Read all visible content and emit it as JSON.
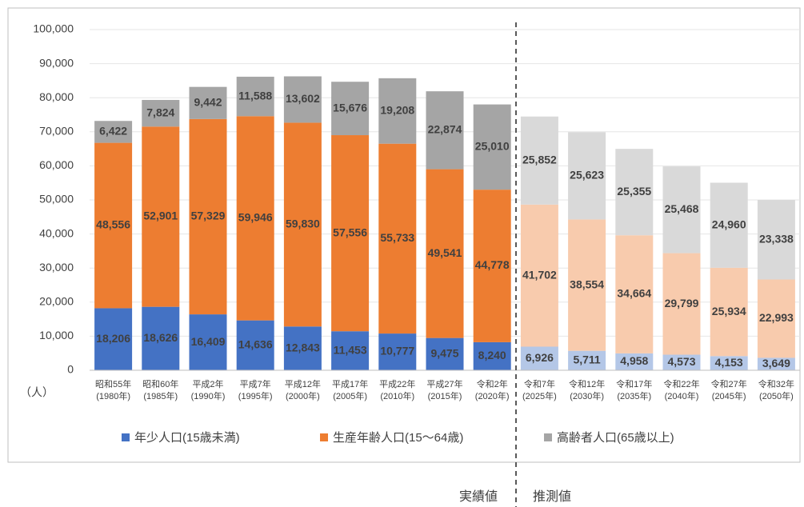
{
  "chart_data": {
    "type": "stacked_bar",
    "y_axis_label": "（人）",
    "categories": [
      "昭和55年\n(1980年)",
      "昭和60年\n(1985年)",
      "平成2年\n(1990年)",
      "平成7年\n(1995年)",
      "平成12年\n(2000年)",
      "平成17年\n(2005年)",
      "平成22年\n(2010年)",
      "平成27年\n(2015年)",
      "令和2年\n(2020年)",
      "令和7年\n(2025年)",
      "令和12年\n(2030年)",
      "令和17年\n(2035年)",
      "令和22年\n(2040年)",
      "令和27年\n(2045年)",
      "令和32年\n(2050年)"
    ],
    "series": [
      {
        "name": "年少人口(15歳未満)",
        "color": "#4472c4",
        "colors": [
          "#4472c4",
          "#4472c4",
          "#4472c4",
          "#4472c4",
          "#4472c4",
          "#4472c4",
          "#4472c4",
          "#4472c4",
          "#4472c4",
          "#b4c7e7",
          "#b4c7e7",
          "#b4c7e7",
          "#b4c7e7",
          "#b4c7e7",
          "#b4c7e7"
        ],
        "values": [
          18206,
          18626,
          16409,
          14636,
          12843,
          11453,
          10777,
          9475,
          8240,
          6926,
          5711,
          4958,
          4573,
          4153,
          3649
        ],
        "value_labels": [
          "18,206",
          "18,626",
          "16,409",
          "14,636",
          "12,843",
          "11,453",
          "10,777",
          "9,475",
          "8,240",
          "6,926",
          "5,711",
          "4,958",
          "4,573",
          "4,153",
          "3,649"
        ]
      },
      {
        "name": "生産年齢人口(15～64歳)",
        "color": "#ed7d31",
        "colors": [
          "#ed7d31",
          "#ed7d31",
          "#ed7d31",
          "#ed7d31",
          "#ed7d31",
          "#ed7d31",
          "#ed7d31",
          "#ed7d31",
          "#ed7d31",
          "#f8cbad",
          "#f8cbad",
          "#f8cbad",
          "#f8cbad",
          "#f8cbad",
          "#f8cbad"
        ],
        "values": [
          48556,
          52901,
          57329,
          59946,
          59830,
          57556,
          55733,
          49541,
          44778,
          41702,
          38554,
          34664,
          29799,
          25934,
          22993
        ],
        "value_labels": [
          "48,556",
          "52,901",
          "57,329",
          "59,946",
          "59,830",
          "57,556",
          "55,733",
          "49,541",
          "44,778",
          "41,702",
          "38,554",
          "34,664",
          "29,799",
          "25,934",
          "22,993"
        ]
      },
      {
        "name": "高齢者人口(65歳以上)",
        "color": "#a5a5a5",
        "colors": [
          "#a5a5a5",
          "#a5a5a5",
          "#a5a5a5",
          "#a5a5a5",
          "#a5a5a5",
          "#a5a5a5",
          "#a5a5a5",
          "#a5a5a5",
          "#a5a5a5",
          "#d9d9d9",
          "#d9d9d9",
          "#d9d9d9",
          "#d9d9d9",
          "#d9d9d9",
          "#d9d9d9"
        ],
        "values": [
          6422,
          7824,
          9442,
          11588,
          13602,
          15676,
          19208,
          22874,
          25010,
          25852,
          25623,
          25355,
          25468,
          24960,
          23338
        ],
        "value_labels": [
          "6,422",
          "7,824",
          "9,442",
          "11,588",
          "13,602",
          "15,676",
          "19,208",
          "22,874",
          "25,010",
          "25,852",
          "25,623",
          "25,355",
          "25,468",
          "24,960",
          "23,338"
        ]
      }
    ],
    "ylim": [
      0,
      100000
    ],
    "yticks": [
      0,
      {
        "value": 10000,
        "label": "10,000"
      },
      {
        "value": 20000,
        "label": "20,000"
      },
      {
        "value": 30000,
        "label": "30,000"
      },
      {
        "value": 40000,
        "label": "40,000"
      },
      {
        "value": 50000,
        "label": "50,000"
      },
      {
        "value": 60000,
        "label": "60,000"
      },
      {
        "value": 70000,
        "label": "70,000"
      },
      {
        "value": 80000,
        "label": "80,000"
      },
      {
        "value": 90000,
        "label": "90,000"
      },
      {
        "value": 100000,
        "label": "100,000"
      }
    ],
    "grid": true,
    "legend": "bottom",
    "annotations": [
      "実績値",
      "推測値"
    ]
  }
}
